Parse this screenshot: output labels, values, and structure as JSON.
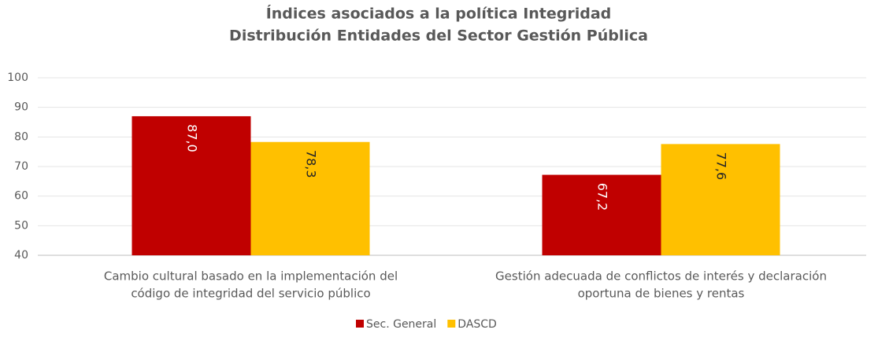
{
  "chart_data": {
    "type": "bar",
    "title": "Índices asociados a la política Integridad",
    "subtitle": "Distribución Entidades del Sector Gestión Pública",
    "categories": [
      [
        "Cambio cultural basado en la implementación del",
        "código de integridad del servicio público"
      ],
      [
        "Gestión adecuada de conflictos de interés y declaración",
        "oportuna de bienes y rentas"
      ]
    ],
    "series": [
      {
        "name": "Sec. General",
        "color": "#c00000",
        "values": [
          87.0,
          67.2
        ],
        "value_labels": [
          "87,0",
          "67,2"
        ]
      },
      {
        "name": "DASCD",
        "color": "#ffc000",
        "values": [
          78.3,
          77.6
        ],
        "value_labels": [
          "78,3",
          "77,6"
        ]
      }
    ],
    "ylim": [
      40,
      100
    ],
    "yticks": [
      40,
      50,
      60,
      70,
      80,
      90,
      100
    ],
    "grid": true,
    "legend": "bottom"
  }
}
